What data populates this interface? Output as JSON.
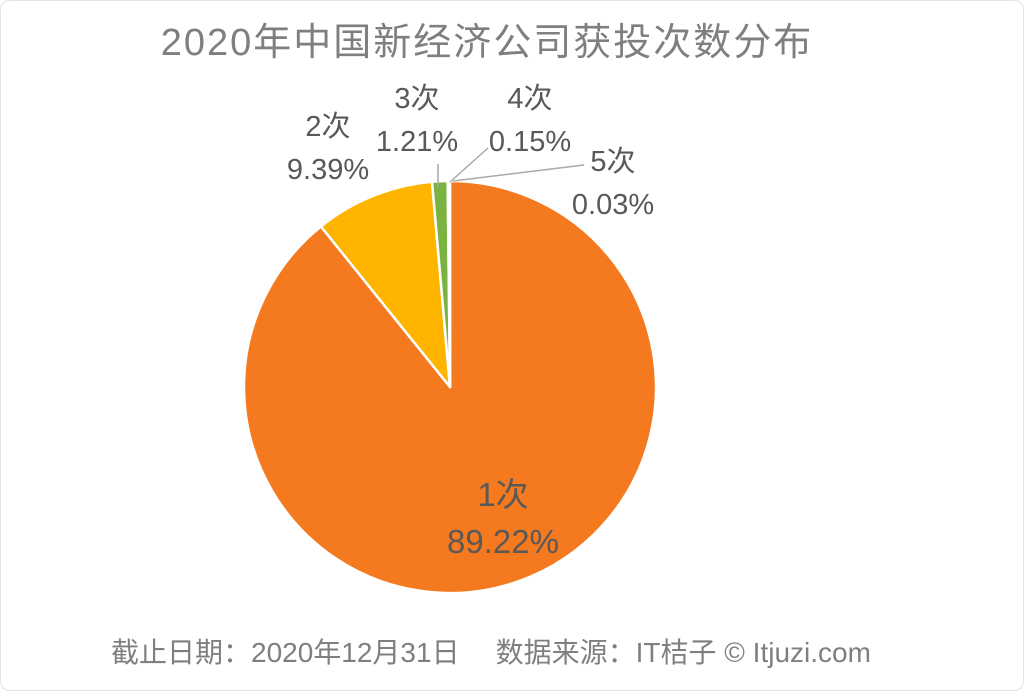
{
  "title": "2020年中国新经济公司获投次数分布",
  "chart_data": {
    "type": "pie",
    "title": "2020年中国新经济公司获投次数分布",
    "categories": [
      "1次",
      "2次",
      "3次",
      "4次",
      "5次"
    ],
    "values": [
      89.22,
      9.39,
      1.21,
      0.15,
      0.03
    ],
    "unit": "%",
    "colors": [
      "#F5791F",
      "#FFB400",
      "#7AB342",
      "#FFFFFF",
      "#FFFFFF"
    ],
    "start_angle_deg": 0,
    "direction": "clockwise",
    "legend": "none",
    "annotations": "largest slice labeled inside; small slices labeled outside with leader lines"
  },
  "labels": [
    {
      "name": "1次",
      "value": "89.22%"
    },
    {
      "name": "2次",
      "value": "9.39%"
    },
    {
      "name": "3次",
      "value": "1.21%"
    },
    {
      "name": "4次",
      "value": "0.15%"
    },
    {
      "name": "5次",
      "value": "0.03%"
    }
  ],
  "footer": {
    "date_label": "截止日期：2020年12月31日",
    "source_label": "数据来源：IT桔子 © Itjuzi.com"
  },
  "colors": {
    "title_text": "#7F7F7F",
    "label_text": "#595959",
    "footer_text": "#7F7F7F",
    "leader_line": "#A9A9A9",
    "slice_separator": "#FFFFFF"
  }
}
